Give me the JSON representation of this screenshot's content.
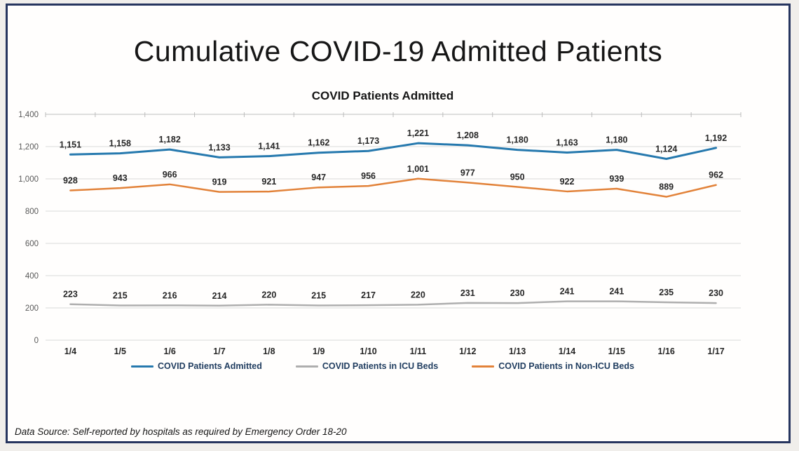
{
  "page": {
    "title": "Cumulative COVID-19 Admitted Patients",
    "footer": "Data Source: Self-reported by hospitals as required by Emergency Order 18-20"
  },
  "colors": {
    "frame_border": "#26355f",
    "gridline": "#d9d9d9",
    "axis_line": "#bdbdbd",
    "tick_label": "#595959",
    "data_label": "#262626",
    "x_label": "#262626",
    "legend_text": "#1f3c5f",
    "outer_background": "#f0eeeb"
  },
  "chart_data": {
    "type": "line",
    "title": "COVID Patients Admitted",
    "categories": [
      "1/4",
      "1/5",
      "1/6",
      "1/7",
      "1/8",
      "1/9",
      "1/10",
      "1/11",
      "1/12",
      "1/13",
      "1/14",
      "1/15",
      "1/16",
      "1/17"
    ],
    "series": [
      {
        "name": "COVID Patients Admitted",
        "color": "#2679ae",
        "values": [
          1151,
          1158,
          1182,
          1133,
          1141,
          1162,
          1173,
          1221,
          1208,
          1180,
          1163,
          1180,
          1124,
          1192
        ]
      },
      {
        "name": "COVID Patients in ICU Beds",
        "color": "#aeaeae",
        "values": [
          223,
          215,
          216,
          214,
          220,
          215,
          217,
          220,
          231,
          230,
          241,
          241,
          235,
          230
        ]
      },
      {
        "name": "COVID Patients in Non-ICU Beds",
        "color": "#e28239",
        "values": [
          928,
          943,
          966,
          919,
          921,
          947,
          956,
          1001,
          977,
          950,
          922,
          939,
          889,
          962
        ]
      }
    ],
    "ylim": [
      0,
      1400
    ],
    "y_tick_step": 200,
    "y_tick_labels": [
      "0",
      "200",
      "400",
      "600",
      "800",
      "1,000",
      "1,200",
      "1,400"
    ],
    "grid": true,
    "legend_position": "bottom",
    "data_labels": true
  }
}
